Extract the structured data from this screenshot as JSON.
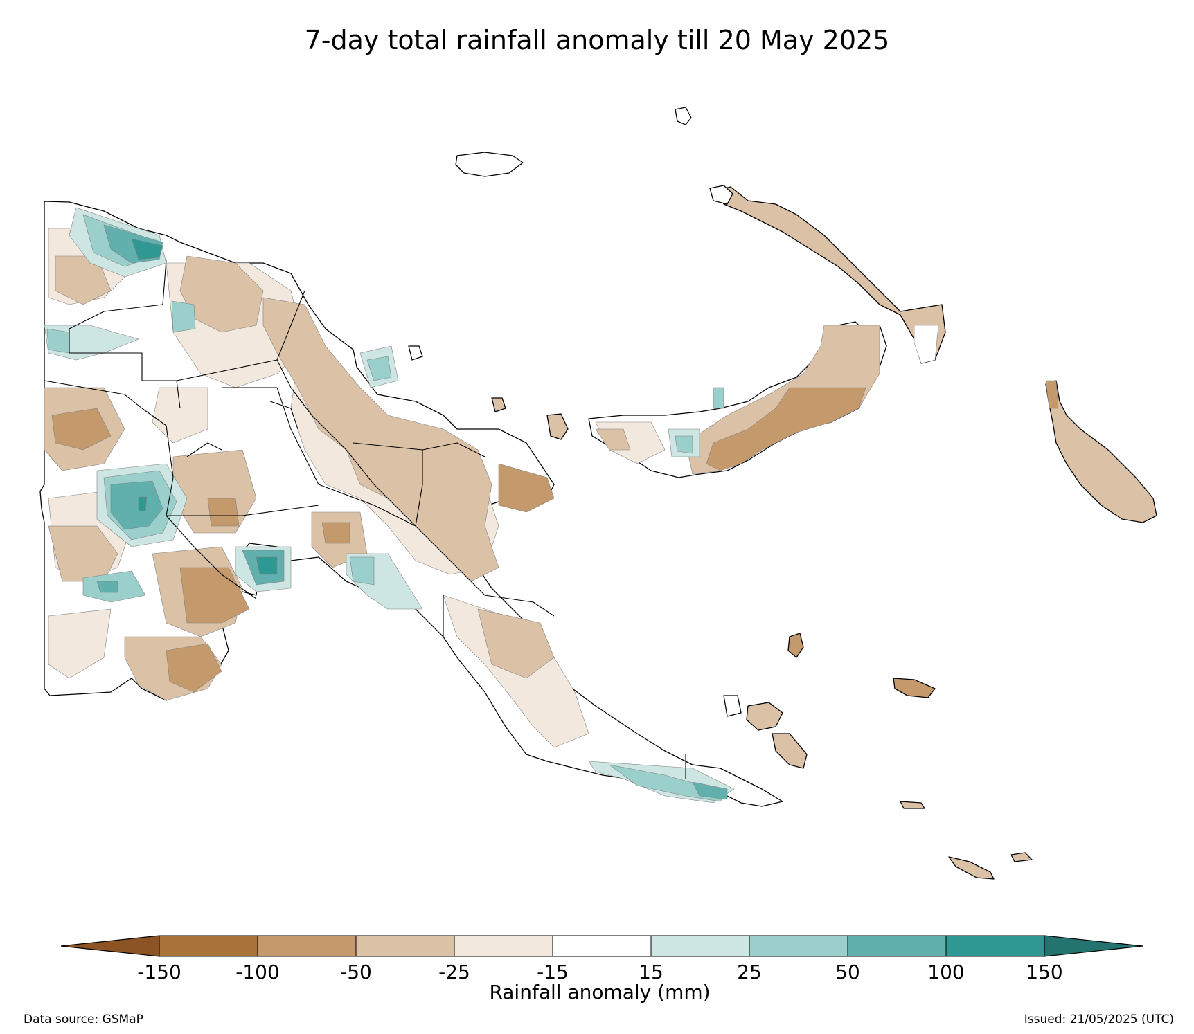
{
  "title": "7-day total rainfall anomaly till 20 May 2025",
  "colorbar": {
    "label": "Rainfall anomaly (mm)",
    "ticks": [
      "-150",
      "-100",
      "-50",
      "-25",
      "-15",
      "15",
      "25",
      "50",
      "100",
      "150"
    ],
    "bins": [
      {
        "range": "< -150",
        "color": "#8c5324"
      },
      {
        "range": "-150 to -100",
        "color": "#a8733a"
      },
      {
        "range": "-100 to -50",
        "color": "#c49a6c"
      },
      {
        "range": "-50 to -25",
        "color": "#dbc2a6"
      },
      {
        "range": "-25 to -15",
        "color": "#f2e8de"
      },
      {
        "range": "-15 to 15",
        "color": "#ffffff"
      },
      {
        "range": "15 to 25",
        "color": "#cde6e4"
      },
      {
        "range": "25 to 50",
        "color": "#9acfcc"
      },
      {
        "range": "50 to 100",
        "color": "#62b0ad"
      },
      {
        "range": "100 to 150",
        "color": "#2f9893"
      },
      {
        "range": "> 150",
        "color": "#23736e"
      }
    ]
  },
  "footer": {
    "source": "Data source: GSMaP",
    "issued": "Issued: 21/05/2025 (UTC)"
  }
}
